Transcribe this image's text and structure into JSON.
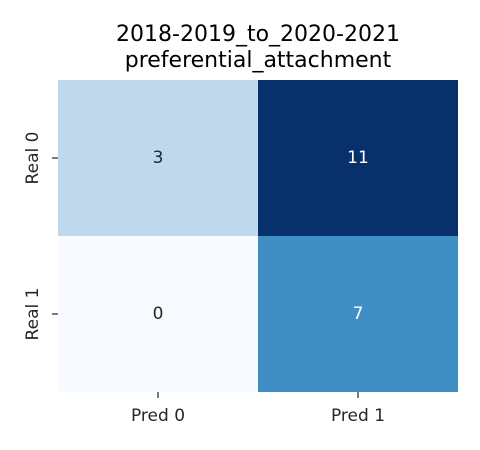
{
  "chart_data": {
    "type": "heatmap",
    "title_lines": [
      "2018-2019_to_2020-2021",
      "preferential_attachment"
    ],
    "x_categories": [
      "Pred 0",
      "Pred 1"
    ],
    "y_categories": [
      "Real 0",
      "Real 1"
    ],
    "values": [
      [
        3,
        11
      ],
      [
        0,
        7
      ]
    ],
    "colormap": "Blues",
    "vmin": 0,
    "vmax": 11,
    "colorbar": false,
    "xlabel": "",
    "ylabel": ""
  }
}
